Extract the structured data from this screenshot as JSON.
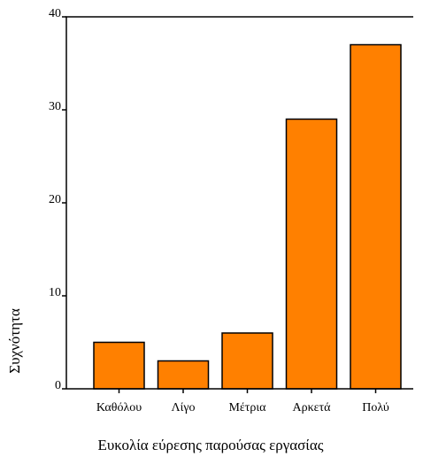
{
  "chart_data": {
    "type": "bar",
    "title": "",
    "xlabel": "Ευκολία εύρεσης παρούσας εργασίας",
    "ylabel": "Συχνότητα",
    "categories": [
      "Καθόλου",
      "Λίγο",
      "Μέτρια",
      "Αρκετά",
      "Πολύ"
    ],
    "values": [
      5,
      3,
      6,
      29,
      37
    ],
    "ylim": [
      0,
      40
    ],
    "yticks": [
      0,
      10,
      20,
      30,
      40
    ],
    "grid": false,
    "legend": "none",
    "bar_color": "#ff8000",
    "bar_stroke": "#000000"
  }
}
